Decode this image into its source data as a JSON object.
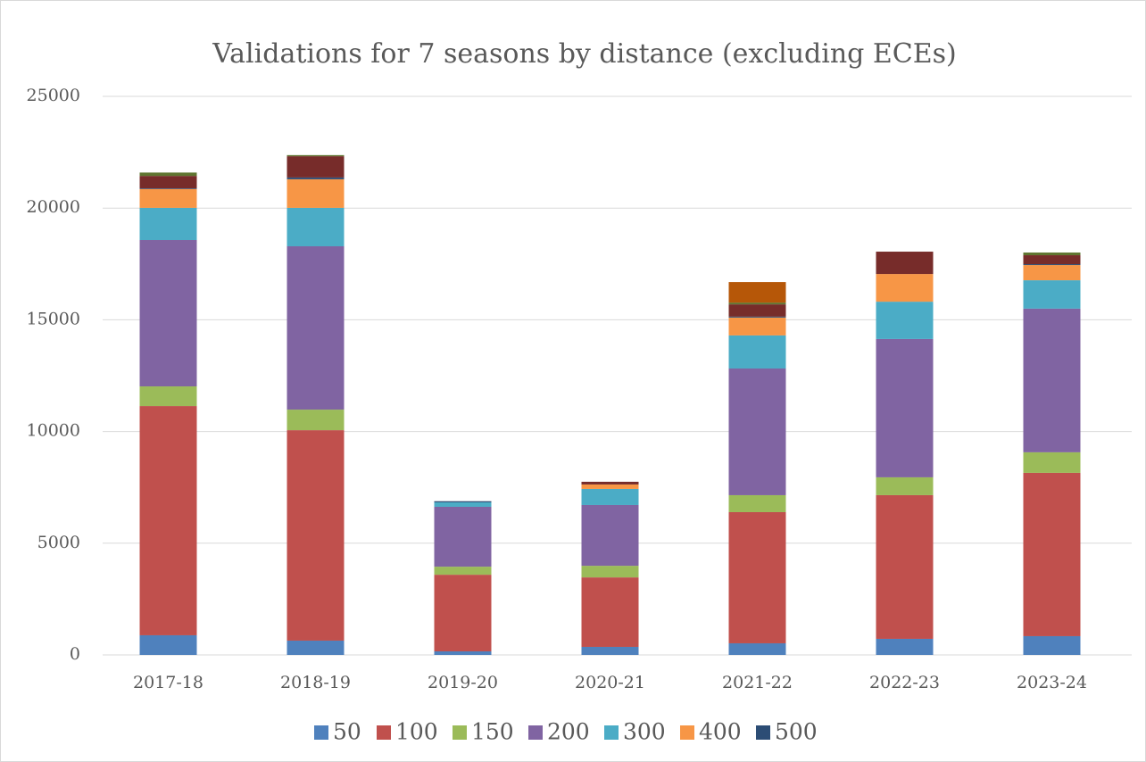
{
  "chart_data": {
    "type": "bar",
    "stacked": true,
    "title": "Validations for 7 seasons by distance  (excluding ECEs)",
    "categories": [
      "2017-18",
      "2018-19",
      "2019-20",
      "2020-21",
      "2021-22",
      "2022-23",
      "2023-24"
    ],
    "series": [
      {
        "name": "50",
        "color": "#4f81bd",
        "values": [
          880,
          640,
          160,
          360,
          520,
          720,
          840
        ]
      },
      {
        "name": "100",
        "color": "#c0504d",
        "values": [
          10260,
          9420,
          3430,
          3110,
          5870,
          6430,
          7310
        ]
      },
      {
        "name": "150",
        "color": "#9bbb59",
        "values": [
          880,
          920,
          360,
          520,
          760,
          800,
          920
        ]
      },
      {
        "name": "200",
        "color": "#8064a2",
        "values": [
          6550,
          7310,
          2680,
          2720,
          5670,
          6190,
          6430
        ]
      },
      {
        "name": "300",
        "color": "#4bacc6",
        "values": [
          1440,
          1720,
          200,
          720,
          1480,
          1670,
          1270
        ]
      },
      {
        "name": "400",
        "color": "#f79646",
        "values": [
          840,
          1280,
          0,
          200,
          800,
          1240,
          680
        ]
      },
      {
        "name": "500",
        "color": "#2c4d75",
        "values": [
          30,
          80,
          50,
          0,
          40,
          0,
          40
        ]
      },
      {
        "name": null,
        "color": "#772c2a",
        "values": [
          560,
          950,
          0,
          120,
          550,
          1000,
          400
        ]
      },
      {
        "name": null,
        "color": "#5f7530",
        "values": [
          150,
          50,
          0,
          0,
          80,
          0,
          120
        ]
      },
      {
        "name": null,
        "color": "#b65708",
        "values": [
          0,
          0,
          0,
          0,
          920,
          0,
          0
        ]
      }
    ],
    "ylim": [
      0,
      25000
    ],
    "yticks": [
      0,
      5000,
      10000,
      15000,
      20000,
      25000
    ],
    "grid": true,
    "legend": "bottom"
  }
}
